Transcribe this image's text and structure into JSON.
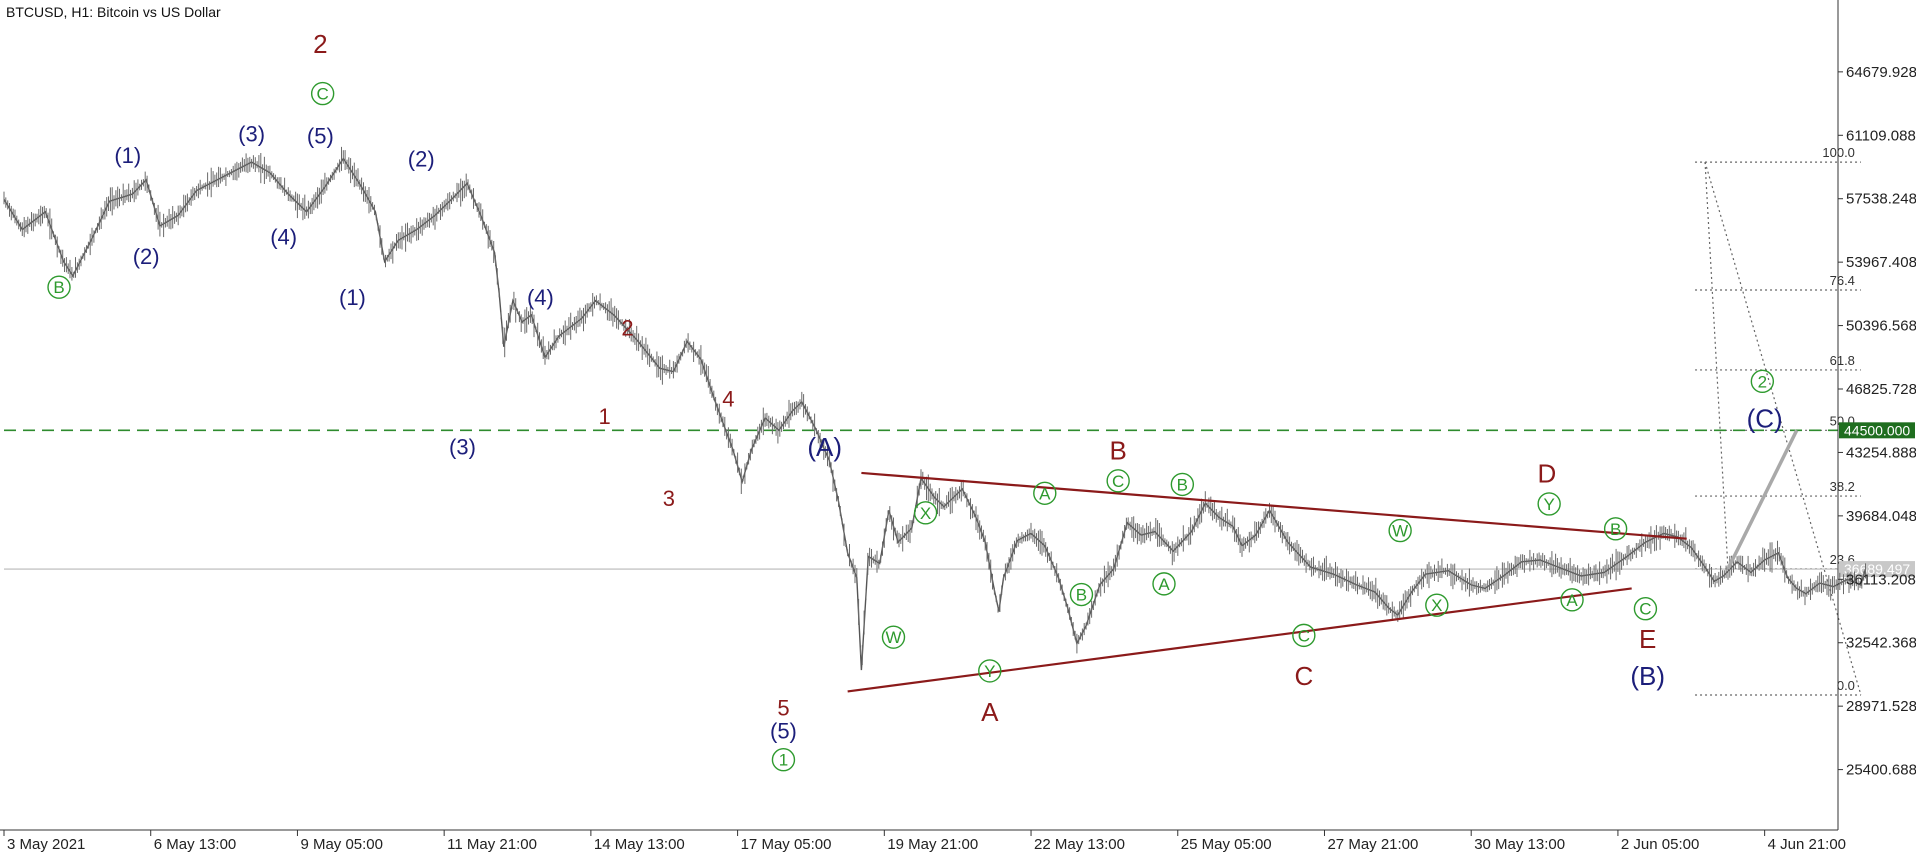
{
  "chart_data": {
    "type": "line",
    "title": "BTCUSD, H1:  Bitcoin vs US Dollar",
    "ylim": [
      22000,
      68500
    ],
    "y_ticks": [
      "64679.928",
      "61109.088",
      "57538.248",
      "53967.408",
      "50396.568",
      "46825.728",
      "43254.888",
      "39684.048",
      "36113.208",
      "32542.368",
      "28971.528",
      "25400.688"
    ],
    "y_tick_values": [
      64679.928,
      61109.088,
      57538.248,
      53967.408,
      50396.568,
      46825.728,
      43254.888,
      39684.048,
      36113.208,
      32542.368,
      28971.528,
      25400.688
    ],
    "x_ticks": [
      "3 May 2021",
      "6 May 13:00",
      "9 May 05:00",
      "11 May 21:00",
      "14 May 13:00",
      "17 May 05:00",
      "19 May 21:00",
      "22 May 13:00",
      "25 May 05:00",
      "27 May 21:00",
      "30 May 13:00",
      "2 Jun 05:00",
      "4 Jun 21:00"
    ],
    "x_range": [
      0,
      800
    ],
    "x_tick_positions": [
      0,
      64,
      128,
      192,
      256,
      320,
      384,
      448,
      512,
      576,
      640,
      704,
      768
    ],
    "price_series": [
      [
        0,
        57500
      ],
      [
        8,
        55800
      ],
      [
        18,
        56800
      ],
      [
        26,
        54000
      ],
      [
        30,
        53200
      ],
      [
        38,
        55200
      ],
      [
        46,
        57400
      ],
      [
        56,
        57800
      ],
      [
        62,
        58600
      ],
      [
        68,
        56000
      ],
      [
        76,
        56600
      ],
      [
        84,
        58000
      ],
      [
        96,
        58800
      ],
      [
        108,
        59600
      ],
      [
        116,
        59000
      ],
      [
        124,
        57800
      ],
      [
        132,
        56800
      ],
      [
        140,
        58200
      ],
      [
        148,
        59800
      ],
      [
        156,
        58200
      ],
      [
        162,
        56800
      ],
      [
        166,
        54000
      ],
      [
        172,
        55200
      ],
      [
        180,
        55800
      ],
      [
        188,
        56600
      ],
      [
        196,
        57600
      ],
      [
        202,
        58400
      ],
      [
        208,
        56600
      ],
      [
        214,
        54500
      ],
      [
        216,
        52200
      ],
      [
        218,
        49200
      ],
      [
        222,
        51800
      ],
      [
        226,
        50600
      ],
      [
        230,
        51000
      ],
      [
        236,
        48600
      ],
      [
        242,
        49800
      ],
      [
        252,
        50800
      ],
      [
        258,
        51800
      ],
      [
        266,
        51000
      ],
      [
        276,
        49600
      ],
      [
        286,
        48000
      ],
      [
        292,
        47800
      ],
      [
        298,
        49500
      ],
      [
        304,
        48500
      ],
      [
        310,
        46200
      ],
      [
        314,
        44800
      ],
      [
        318,
        43400
      ],
      [
        322,
        41600
      ],
      [
        326,
        43400
      ],
      [
        332,
        45200
      ],
      [
        338,
        44500
      ],
      [
        344,
        45600
      ],
      [
        348,
        46100
      ],
      [
        354,
        44600
      ],
      [
        360,
        42800
      ],
      [
        364,
        40500
      ],
      [
        368,
        37600
      ],
      [
        372,
        36200
      ],
      [
        374,
        31000
      ],
      [
        377,
        37400
      ],
      [
        382,
        37000
      ],
      [
        386,
        40000
      ],
      [
        390,
        38200
      ],
      [
        396,
        39000
      ],
      [
        400,
        41800
      ],
      [
        406,
        40700
      ],
      [
        410,
        40200
      ],
      [
        418,
        41200
      ],
      [
        424,
        39600
      ],
      [
        428,
        38200
      ],
      [
        432,
        35500
      ],
      [
        434,
        34300
      ],
      [
        436,
        36200
      ],
      [
        442,
        38300
      ],
      [
        448,
        38700
      ],
      [
        454,
        38000
      ],
      [
        460,
        36200
      ],
      [
        464,
        34500
      ],
      [
        468,
        32500
      ],
      [
        472,
        33500
      ],
      [
        478,
        35800
      ],
      [
        484,
        36700
      ],
      [
        490,
        39300
      ],
      [
        496,
        38600
      ],
      [
        502,
        38800
      ],
      [
        510,
        37700
      ],
      [
        518,
        38800
      ],
      [
        524,
        40400
      ],
      [
        530,
        39600
      ],
      [
        536,
        39100
      ],
      [
        540,
        38000
      ],
      [
        546,
        38600
      ],
      [
        552,
        40000
      ],
      [
        560,
        38200
      ],
      [
        570,
        36800
      ],
      [
        580,
        36400
      ],
      [
        590,
        35800
      ],
      [
        598,
        35400
      ],
      [
        604,
        34500
      ],
      [
        608,
        34100
      ],
      [
        614,
        35400
      ],
      [
        620,
        36400
      ],
      [
        630,
        36600
      ],
      [
        640,
        35800
      ],
      [
        646,
        35600
      ],
      [
        654,
        36300
      ],
      [
        662,
        37100
      ],
      [
        670,
        37200
      ],
      [
        678,
        36800
      ],
      [
        688,
        36300
      ],
      [
        698,
        36500
      ],
      [
        708,
        37400
      ],
      [
        716,
        38200
      ],
      [
        724,
        38700
      ],
      [
        730,
        38500
      ],
      [
        736,
        37900
      ],
      [
        742,
        36800
      ],
      [
        746,
        36000
      ],
      [
        750,
        36300
      ],
      [
        756,
        37100
      ],
      [
        762,
        36500
      ],
      [
        768,
        37200
      ],
      [
        774,
        37600
      ],
      [
        778,
        36200
      ],
      [
        782,
        35600
      ],
      [
        786,
        35300
      ],
      [
        792,
        35900
      ],
      [
        798,
        35700
      ],
      [
        804,
        36100
      ],
      [
        810,
        35800
      ],
      [
        812,
        36689
      ]
    ],
    "h_lines": [
      {
        "value": 44500.0,
        "label": "44500.000",
        "color": "#2e8b2e",
        "style": "dashed"
      },
      {
        "value": 36689.497,
        "label": "36689.497",
        "color": "#b8b8b8",
        "style": "solid"
      }
    ],
    "fib_levels": [
      {
        "label": "100.0",
        "value": 59600
      },
      {
        "label": "76.4",
        "value": 52400
      },
      {
        "label": "61.8",
        "value": 47900
      },
      {
        "label": "50.0",
        "value": 44500
      },
      {
        "label": "38.2",
        "value": 40800
      },
      {
        "label": "23.6",
        "value": 36700
      },
      {
        "label": "0.0",
        "value": 29600
      }
    ],
    "trend_lines": [
      {
        "x1": 374,
        "y1": 42100,
        "x2": 734,
        "y2": 38400
      },
      {
        "x1": 368,
        "y1": 29800,
        "x2": 710,
        "y2": 35600
      }
    ],
    "projection": {
      "x1": 752,
      "y1": 36700,
      "x2": 782,
      "y2": 44500
    },
    "fib_diagonal": [
      {
        "x1": 742,
        "y1": 59600,
        "x2": 810,
        "y2": 29600
      },
      {
        "x1": 742,
        "y1": 59600,
        "x2": 752,
        "y2": 36700
      }
    ],
    "wave_labels": [
      {
        "text": "B",
        "x": 24,
        "y": 52500,
        "style": "circle",
        "color": "#2e9a2e"
      },
      {
        "text": "(1)",
        "x": 54,
        "y": 60000,
        "style": "paren",
        "color": "#1c1e7a"
      },
      {
        "text": "(2)",
        "x": 62,
        "y": 54300,
        "style": "paren",
        "color": "#1c1e7a"
      },
      {
        "text": "(3)",
        "x": 108,
        "y": 61200,
        "style": "paren",
        "color": "#1c1e7a"
      },
      {
        "text": "(4)",
        "x": 122,
        "y": 55400,
        "style": "paren",
        "color": "#1c1e7a"
      },
      {
        "text": "(5)",
        "x": 138,
        "y": 61100,
        "style": "paren",
        "color": "#1c1e7a"
      },
      {
        "text": "C",
        "x": 139,
        "y": 63400,
        "style": "circle",
        "color": "#2e9a2e"
      },
      {
        "text": "2",
        "x": 138,
        "y": 66200,
        "style": "big",
        "color": "#8b1a1a"
      },
      {
        "text": "(1)",
        "x": 152,
        "y": 52000,
        "style": "paren",
        "color": "#1c1e7a"
      },
      {
        "text": "(2)",
        "x": 182,
        "y": 59800,
        "style": "paren",
        "color": "#1c1e7a"
      },
      {
        "text": "(3)",
        "x": 200,
        "y": 43600,
        "style": "paren",
        "color": "#1c1e7a"
      },
      {
        "text": "(4)",
        "x": 234,
        "y": 52000,
        "style": "paren",
        "color": "#1c1e7a"
      },
      {
        "text": "2",
        "x": 272,
        "y": 50300,
        "style": "small",
        "color": "#8b1a1a"
      },
      {
        "text": "1",
        "x": 262,
        "y": 45300,
        "style": "small",
        "color": "#8b1a1a"
      },
      {
        "text": "4",
        "x": 316,
        "y": 46300,
        "style": "small",
        "color": "#8b1a1a"
      },
      {
        "text": "3",
        "x": 290,
        "y": 40700,
        "style": "small",
        "color": "#8b1a1a"
      },
      {
        "text": "5",
        "x": 340,
        "y": 28900,
        "style": "small",
        "color": "#8b1a1a"
      },
      {
        "text": "(5)",
        "x": 340,
        "y": 27600,
        "style": "paren",
        "color": "#1c1e7a"
      },
      {
        "text": "1",
        "x": 340,
        "y": 25900,
        "style": "circle",
        "color": "#2e9a2e"
      },
      {
        "text": "(A)",
        "x": 358,
        "y": 43500,
        "style": "parenbig",
        "color": "#1c1e7a"
      },
      {
        "text": "X",
        "x": 402,
        "y": 39800,
        "style": "circle",
        "color": "#2e9a2e"
      },
      {
        "text": "W",
        "x": 388,
        "y": 32800,
        "style": "circle",
        "color": "#2e9a2e"
      },
      {
        "text": "Y",
        "x": 430,
        "y": 30900,
        "style": "circle",
        "color": "#2e9a2e"
      },
      {
        "text": "A",
        "x": 430,
        "y": 28600,
        "style": "big",
        "color": "#8b1a1a"
      },
      {
        "text": "A",
        "x": 454,
        "y": 40900,
        "style": "circle",
        "color": "#2e9a2e"
      },
      {
        "text": "B",
        "x": 470,
        "y": 35200,
        "style": "circle",
        "color": "#2e9a2e"
      },
      {
        "text": "B",
        "x": 486,
        "y": 43300,
        "style": "big",
        "color": "#8b1a1a"
      },
      {
        "text": "C",
        "x": 486,
        "y": 41600,
        "style": "circle",
        "color": "#2e9a2e"
      },
      {
        "text": "A",
        "x": 506,
        "y": 35800,
        "style": "circle",
        "color": "#2e9a2e"
      },
      {
        "text": "B",
        "x": 514,
        "y": 41400,
        "style": "circle",
        "color": "#2e9a2e"
      },
      {
        "text": "C",
        "x": 567,
        "y": 32900,
        "style": "circle",
        "color": "#2e9a2e"
      },
      {
        "text": "C",
        "x": 567,
        "y": 30600,
        "style": "big",
        "color": "#8b1a1a"
      },
      {
        "text": "W",
        "x": 609,
        "y": 38800,
        "style": "circle",
        "color": "#2e9a2e"
      },
      {
        "text": "X",
        "x": 625,
        "y": 34600,
        "style": "circle",
        "color": "#2e9a2e"
      },
      {
        "text": "D",
        "x": 673,
        "y": 42000,
        "style": "big",
        "color": "#8b1a1a"
      },
      {
        "text": "Y",
        "x": 674,
        "y": 40300,
        "style": "circle",
        "color": "#2e9a2e"
      },
      {
        "text": "A",
        "x": 684,
        "y": 34900,
        "style": "circle",
        "color": "#2e9a2e"
      },
      {
        "text": "B",
        "x": 703,
        "y": 38900,
        "style": "circle",
        "color": "#2e9a2e"
      },
      {
        "text": "C",
        "x": 716,
        "y": 34400,
        "style": "circle",
        "color": "#2e9a2e"
      },
      {
        "text": "E",
        "x": 717,
        "y": 32700,
        "style": "big",
        "color": "#8b1a1a"
      },
      {
        "text": "(B)",
        "x": 717,
        "y": 30600,
        "style": "parenbig",
        "color": "#1c1e7a"
      },
      {
        "text": "2",
        "x": 767,
        "y": 47200,
        "style": "circle",
        "color": "#2e9a2e"
      },
      {
        "text": "(C)",
        "x": 768,
        "y": 45100,
        "style": "parenbig",
        "color": "#1c1e7a"
      }
    ]
  }
}
